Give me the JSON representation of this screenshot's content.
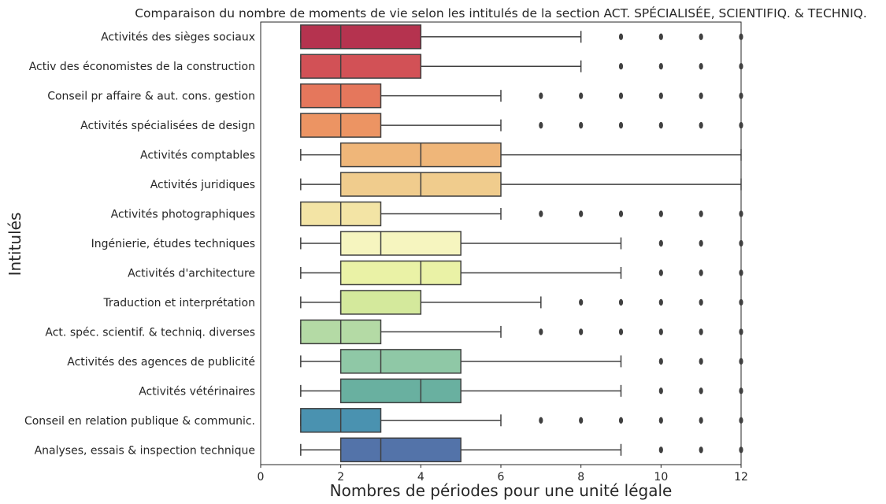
{
  "chart_data": {
    "type": "boxplot",
    "orientation": "horizontal",
    "title": "Comparaison du nombre de moments de vie selon les intitulés de la section ACT. SPÉCIALISÉE, SCIENTIFIQ. & TECHNIQ.",
    "xlabel": "Nombres de périodes pour une unité légale",
    "ylabel": "Intitulés",
    "xlim": [
      0,
      12
    ],
    "xticks": [
      "0",
      "2",
      "4",
      "6",
      "8",
      "10",
      "12"
    ],
    "grid": false,
    "categories": [
      {
        "label": "Activités des sièges sociaux",
        "whisker_low": 1,
        "q1": 1,
        "median": 2,
        "q3": 4,
        "whisker_high": 8,
        "outliers": [
          9,
          10,
          11,
          12
        ],
        "color": "#b5334f"
      },
      {
        "label": "Activ des économistes de la construction",
        "whisker_low": 1,
        "q1": 1,
        "median": 2,
        "q3": 4,
        "whisker_high": 8,
        "outliers": [
          9,
          10,
          11,
          12
        ],
        "color": "#d25156"
      },
      {
        "label": "Conseil pr affaire & aut. cons. gestion",
        "whisker_low": 1,
        "q1": 1,
        "median": 2,
        "q3": 3,
        "whisker_high": 6,
        "outliers": [
          7,
          8,
          9,
          10,
          11,
          12
        ],
        "color": "#e5775c"
      },
      {
        "label": "Activités spécialisées de design",
        "whisker_low": 1,
        "q1": 1,
        "median": 2,
        "q3": 3,
        "whisker_high": 6,
        "outliers": [
          7,
          8,
          9,
          10,
          11,
          12
        ],
        "color": "#ec9463"
      },
      {
        "label": "Activités comptables",
        "whisker_low": 1,
        "q1": 2,
        "median": 4,
        "q3": 6,
        "whisker_high": 12,
        "outliers": [],
        "color": "#efb679"
      },
      {
        "label": "Activités juridiques",
        "whisker_low": 1,
        "q1": 2,
        "median": 4,
        "q3": 6,
        "whisker_high": 12,
        "outliers": [],
        "color": "#f0cc8d"
      },
      {
        "label": "Activités photographiques",
        "whisker_low": 1,
        "q1": 1,
        "median": 2,
        "q3": 3,
        "whisker_high": 6,
        "outliers": [
          7,
          8,
          9,
          10,
          11,
          12
        ],
        "color": "#f3e4a5"
      },
      {
        "label": "Ingénierie, études techniques",
        "whisker_low": 1,
        "q1": 2,
        "median": 3,
        "q3": 5,
        "whisker_high": 9,
        "outliers": [
          10,
          11,
          12
        ],
        "color": "#f6f5bf"
      },
      {
        "label": "Activités d'architecture",
        "whisker_low": 1,
        "q1": 2,
        "median": 4,
        "q3": 5,
        "whisker_high": 9,
        "outliers": [
          10,
          11,
          12
        ],
        "color": "#eaf2a6"
      },
      {
        "label": "Traduction et interprétation",
        "whisker_low": 1,
        "q1": 2,
        "median": 2,
        "q3": 4,
        "whisker_high": 7,
        "outliers": [
          8,
          9,
          10,
          11,
          12
        ],
        "color": "#d4e99c"
      },
      {
        "label": "Act. spéc. scientif. & techniq. diverses",
        "whisker_low": 1,
        "q1": 1,
        "median": 2,
        "q3": 3,
        "whisker_high": 6,
        "outliers": [
          7,
          8,
          9,
          10,
          11,
          12
        ],
        "color": "#b4daa5"
      },
      {
        "label": "Activités des agences de publicité",
        "whisker_low": 1,
        "q1": 2,
        "median": 3,
        "q3": 5,
        "whisker_high": 9,
        "outliers": [
          10,
          11,
          12
        ],
        "color": "#8fc8a6"
      },
      {
        "label": "Activités vétérinaires",
        "whisker_low": 1,
        "q1": 2,
        "median": 4,
        "q3": 5,
        "whisker_high": 9,
        "outliers": [
          10,
          11,
          12
        ],
        "color": "#69b0a0"
      },
      {
        "label": "Conseil en relation publique & communic.",
        "whisker_low": 1,
        "q1": 1,
        "median": 2,
        "q3": 3,
        "whisker_high": 6,
        "outliers": [
          7,
          8,
          9,
          10,
          11,
          12
        ],
        "color": "#4a92b0"
      },
      {
        "label": "Analyses, essais & inspection technique",
        "whisker_low": 1,
        "q1": 2,
        "median": 3,
        "q3": 5,
        "whisker_high": 9,
        "outliers": [
          10,
          11,
          12
        ],
        "color": "#5373a9"
      }
    ]
  }
}
